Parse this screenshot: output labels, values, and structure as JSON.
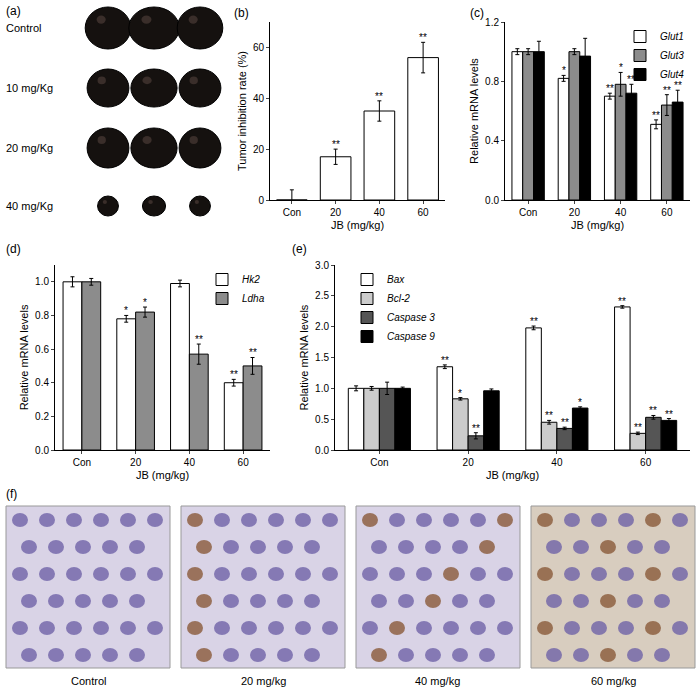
{
  "chart_data": [
    {
      "panel": "(b)",
      "type": "bar",
      "x_label": "JB (mg/kg)",
      "y_label": "Tumor inhibition rate (%)",
      "categories": [
        "Con",
        "20",
        "40",
        "60"
      ],
      "values": [
        0,
        17,
        35,
        56
      ],
      "errors": [
        4,
        3,
        4,
        6
      ],
      "significance": [
        null,
        "**",
        "**",
        "**"
      ],
      "color": "#ffffff",
      "ylim": [
        0,
        70
      ],
      "yticks": [
        0,
        20,
        40,
        60
      ],
      "grid": false
    },
    {
      "panel": "(c)",
      "type": "bar",
      "x_label": "JB (mg/kg)",
      "y_label": "Relative mRNA levels",
      "categories": [
        "Con",
        "20",
        "40",
        "60"
      ],
      "series": [
        {
          "name": "Glut1",
          "color": "#ffffff",
          "values": [
            1.0,
            0.82,
            0.7,
            0.51
          ],
          "errors": [
            0.02,
            0.02,
            0.02,
            0.03
          ],
          "significance": [
            null,
            "*",
            "**",
            "**"
          ]
        },
        {
          "name": "Glut3",
          "color": "#8c8c8c",
          "values": [
            1.0,
            1.0,
            0.78,
            0.64
          ],
          "errors": [
            0.02,
            0.02,
            0.08,
            0.07
          ],
          "significance": [
            null,
            null,
            "*",
            "**"
          ]
        },
        {
          "name": "Glut4",
          "color": "#000000",
          "values": [
            1.0,
            0.97,
            0.72,
            0.66
          ],
          "errors": [
            0.07,
            0.12,
            0.06,
            0.08
          ],
          "significance": [
            null,
            null,
            "**",
            "**"
          ]
        }
      ],
      "ylim": [
        0,
        1.2
      ],
      "yticks": [
        {
          "value": 0,
          "label": "0.0"
        },
        {
          "value": 0.4,
          "label": "0.4"
        },
        {
          "value": 0.8,
          "label": "0.8"
        },
        {
          "value": 1.2,
          "label": "1.2"
        }
      ],
      "grid": false,
      "legend": "top right"
    },
    {
      "panel": "(d)",
      "type": "bar",
      "x_label": "JB (mg/kg)",
      "y_label": "Relative mRNA levels",
      "categories": [
        "Con",
        "20",
        "40",
        "60"
      ],
      "series": [
        {
          "name": "Hk2",
          "color": "#ffffff",
          "values": [
            1.0,
            0.78,
            0.99,
            0.4
          ],
          "errors": [
            0.03,
            0.02,
            0.02,
            0.02
          ],
          "significance": [
            null,
            "*",
            null,
            "**"
          ]
        },
        {
          "name": "Ldha",
          "color": "#8c8c8c",
          "values": [
            1.0,
            0.82,
            0.57,
            0.5
          ],
          "errors": [
            0.02,
            0.03,
            0.06,
            0.05
          ],
          "significance": [
            null,
            "*",
            "**",
            "**"
          ]
        }
      ],
      "ylim": [
        0,
        1.1
      ],
      "yticks": [
        {
          "value": 0,
          "label": "0.0"
        },
        {
          "value": 0.2,
          "label": "0.2"
        },
        {
          "value": 0.4,
          "label": "0.4"
        },
        {
          "value": 0.6,
          "label": "0.6"
        },
        {
          "value": 0.8,
          "label": "0.8"
        },
        {
          "value": 1.0,
          "label": "1.0"
        }
      ],
      "grid": false,
      "legend": "top right"
    },
    {
      "panel": "(e)",
      "type": "bar",
      "x_label": "JB (mg/kg)",
      "y_label": "Relative mRNA levels",
      "categories": [
        "Con",
        "20",
        "40",
        "60"
      ],
      "series": [
        {
          "name": "Bax",
          "color": "#ffffff",
          "values": [
            1.0,
            1.35,
            1.98,
            2.32
          ],
          "errors": [
            0.04,
            0.03,
            0.03,
            0.02
          ],
          "significance": [
            null,
            "**",
            "**",
            "**"
          ]
        },
        {
          "name": "Bcl-2",
          "color": "#cccccc",
          "values": [
            1.0,
            0.83,
            0.45,
            0.27
          ],
          "errors": [
            0.03,
            0.02,
            0.03,
            0.02
          ],
          "significance": [
            null,
            "*",
            "**",
            "**"
          ]
        },
        {
          "name": "Caspase 3",
          "color": "#555555",
          "values": [
            1.0,
            0.23,
            0.35,
            0.53
          ],
          "errors": [
            0.1,
            0.05,
            0.02,
            0.03
          ],
          "significance": [
            null,
            "**",
            "**",
            "**"
          ]
        },
        {
          "name": "Caspase 9",
          "color": "#000000",
          "values": [
            1.0,
            0.96,
            0.68,
            0.48
          ],
          "errors": [
            0.02,
            0.03,
            0.02,
            0.03
          ],
          "significance": [
            null,
            null,
            "*",
            "**"
          ]
        }
      ],
      "ylim": [
        0,
        3.0
      ],
      "yticks": [
        {
          "value": 0,
          "label": "0.0"
        },
        {
          "value": 0.5,
          "label": "0.5"
        },
        {
          "value": 1.0,
          "label": "1.0"
        },
        {
          "value": 1.5,
          "label": "1.5"
        },
        {
          "value": 2.0,
          "label": "2.0"
        },
        {
          "value": 2.5,
          "label": "2.5"
        },
        {
          "value": 3.0,
          "label": "3.0"
        }
      ],
      "grid": false,
      "legend": "top left"
    }
  ],
  "photos": [
    {
      "panel": "(a)",
      "captions": [
        "Control",
        "10 mg/Kg",
        "20 mg/Kg",
        "40 mg/Kg"
      ]
    },
    {
      "panel": "(f)",
      "captions": [
        "Control",
        "20 mg/kg",
        "40 mg/kg",
        "60 mg/kg"
      ]
    }
  ]
}
